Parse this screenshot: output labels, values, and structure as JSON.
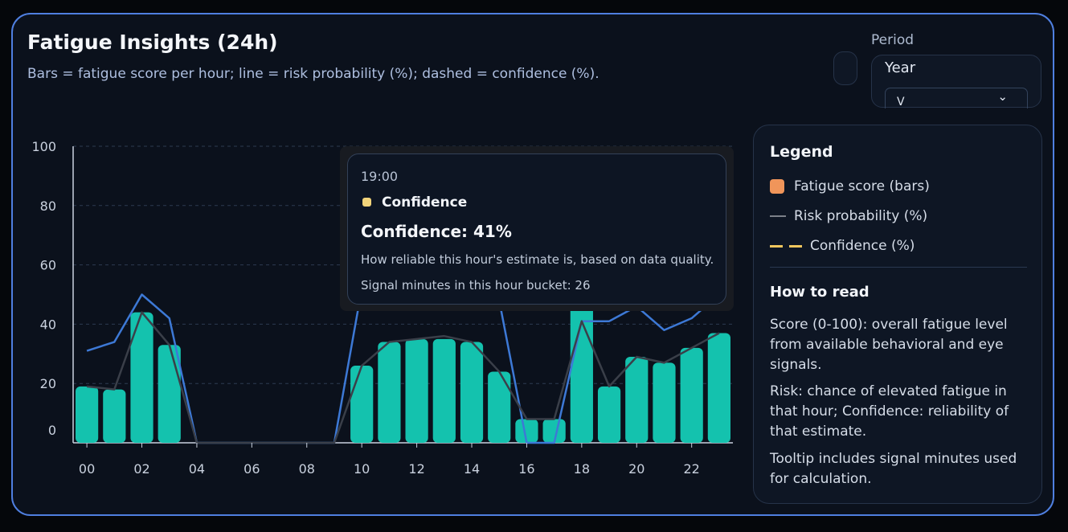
{
  "header": {
    "title": "Fatigue Insights (24h)",
    "subtitle": "Bars = fatigue score per hour; line = risk probability (%); dashed = confidence (%)."
  },
  "period": {
    "label": "Period",
    "value": "Year"
  },
  "legend": {
    "title": "Legend",
    "items": [
      {
        "label": "Fatigue score (bars)",
        "color": "#f0955a"
      },
      {
        "label": "Risk probability (%)",
        "color": "#7c8089"
      },
      {
        "label": "Confidence (%)",
        "color": "#f1c75e"
      }
    ],
    "how_title": "How to read",
    "how": [
      "Score (0-100): overall fatigue level from available behavioral and eye signals.",
      "Risk: chance of elevated fatigue in that hour; Confidence: reliability of that estimate.",
      "Tooltip includes signal minutes used for calculation."
    ]
  },
  "tooltip": {
    "time": "19:00",
    "series": "Confidence",
    "value_text": "Confidence: 41%",
    "description": "How reliable this hour's estimate is, based on data quality.",
    "signal_text": "Signal minutes in this hour bucket: 26"
  },
  "chart_data": {
    "type": "bar",
    "x": [
      "00",
      "01",
      "02",
      "03",
      "04",
      "05",
      "06",
      "07",
      "08",
      "09",
      "10",
      "11",
      "12",
      "13",
      "14",
      "15",
      "16",
      "17",
      "18",
      "19",
      "20",
      "21",
      "22",
      "23"
    ],
    "x_tick_labels": [
      "00",
      "02",
      "04",
      "06",
      "08",
      "10",
      "12",
      "14",
      "16",
      "18",
      "20",
      "22"
    ],
    "ylim": [
      0,
      100
    ],
    "y_ticks": [
      0,
      20,
      40,
      60,
      80,
      100
    ],
    "grid": "horizontal dashed",
    "series": [
      {
        "name": "Fatigue score (bars)",
        "kind": "bar",
        "color": "#14c2ae",
        "values": [
          19,
          18,
          44,
          33,
          0,
          0,
          0,
          0,
          0,
          0,
          26,
          34,
          35,
          35,
          34,
          24,
          8,
          8,
          48,
          19,
          29,
          27,
          32,
          37
        ]
      },
      {
        "name": "Risk probability (%)",
        "kind": "line",
        "color": "#3a3f49",
        "values": [
          19,
          18,
          44,
          33,
          0,
          0,
          0,
          0,
          0,
          0,
          26,
          34,
          35,
          36,
          34,
          24,
          8,
          8,
          41,
          19,
          29,
          27,
          32,
          37
        ]
      },
      {
        "name": "Confidence (%)",
        "kind": "line",
        "color": "#3d79d6",
        "values": [
          31,
          34,
          50,
          42,
          0,
          0,
          0,
          0,
          0,
          0,
          52,
          60,
          62,
          63,
          62,
          48,
          0,
          0,
          41,
          41,
          46,
          38,
          42,
          50
        ]
      }
    ]
  }
}
